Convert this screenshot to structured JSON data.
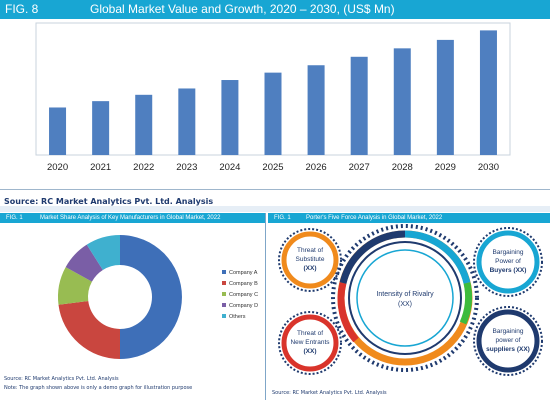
{
  "fig8": {
    "label": "FIG. 8",
    "title": "Global Market Value and Growth, 2020 – 2030, (US$ Mn)",
    "source": "Source: RC Market Analytics Pvt. Ltd. Analysis"
  },
  "fig1_left": {
    "label": "FIG. 1",
    "title": "Market Share Analysis of Key Manufacturers in Global Market, 2022",
    "source": "Source: RC Market Analytics Pvt. Ltd. Analysis",
    "note": "Note: The graph shown above is only a demo graph for illustration purpose"
  },
  "fig1_right": {
    "label": "FIG. 1",
    "title": "Porter's Five Force Analysis in Global Market, 2022",
    "source": "Source: RC Market Analytics Pvt. Ltd. Analysis",
    "center": [
      "Intensity of Rivalry",
      "(XX)"
    ],
    "forces": [
      {
        "lines": [
          "Threat of",
          "Substitute",
          "(XX)"
        ],
        "ring": "#f08a1c",
        "inner": "#f5a05a"
      },
      {
        "lines": [
          "Bargaining",
          "Power of",
          "Buyers (XX)"
        ],
        "ring": "#18a6d3",
        "inner": "#46bde6"
      },
      {
        "lines": [
          "Threat of",
          "New Entrants",
          "(XX)"
        ],
        "ring": "#d9342b",
        "inner": "#e25b53"
      },
      {
        "lines": [
          "Bargaining",
          "power of",
          "suppliers (XX)"
        ],
        "ring": "#1f3a6e",
        "inner": "#2c4f8f"
      }
    ]
  },
  "colors": {
    "header_blue": "#18a6d3",
    "bar_blue": "#4f7fc0",
    "navy_text": "#1f3a6e"
  },
  "chart_data": [
    {
      "type": "bar",
      "categories": [
        "2020",
        "2021",
        "2022",
        "2023",
        "2024",
        "2025",
        "2026",
        "2027",
        "2028",
        "2029",
        "2030"
      ],
      "values": [
        45,
        51,
        57,
        63,
        71,
        78,
        85,
        93,
        101,
        109,
        118
      ],
      "title": "Global Market Value and Growth, 2020 – 2030, (US$ Mn)",
      "xlabel": "",
      "ylabel": "",
      "ylim": [
        0,
        125
      ],
      "grid": false
    },
    {
      "type": "pie",
      "donut": true,
      "title": "Market Share Analysis of Key Manufacturers in Global Market, 2022",
      "legend": "right",
      "slices": [
        {
          "name": "Company A",
          "value": 50,
          "color": "#3e6fb8"
        },
        {
          "name": "Company B",
          "value": 23,
          "color": "#c9463f"
        },
        {
          "name": "Company C",
          "value": 10,
          "color": "#98bc52"
        },
        {
          "name": "Company D",
          "value": 8,
          "color": "#7a5ea6"
        },
        {
          "name": "Others",
          "value": 9,
          "color": "#3fb0cf"
        }
      ]
    }
  ]
}
